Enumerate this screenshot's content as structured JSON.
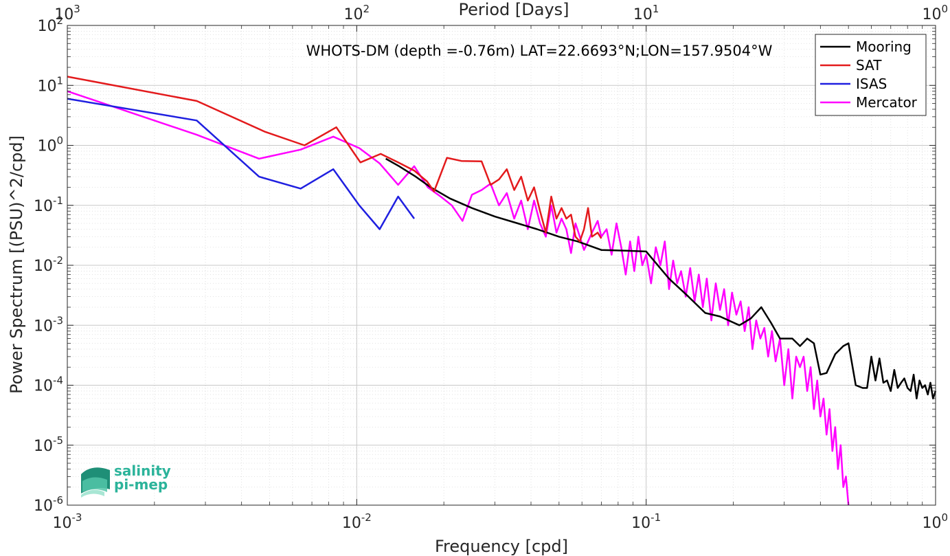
{
  "chart_data": {
    "type": "line",
    "title": "WHOTS-DM (depth =-0.76m) LAT=22.6693°N;LON=157.9504°W",
    "xlabel": "Frequency [cpd]",
    "xlabel_top": "Period [Days]",
    "ylabel": "Power Spectrum [(PSU)^2/cpd]",
    "xscale": "log",
    "yscale": "log",
    "xlim": [
      0.001,
      1
    ],
    "ylim": [
      1e-06,
      100
    ],
    "grid": true,
    "legend_position": "top-right",
    "x_ticks": [
      {
        "value": 0.001,
        "base": "10",
        "exp": "-3"
      },
      {
        "value": 0.01,
        "base": "10",
        "exp": "-2"
      },
      {
        "value": 0.1,
        "base": "10",
        "exp": "-1"
      },
      {
        "value": 1,
        "base": "10",
        "exp": "0"
      }
    ],
    "x_top_ticks": [
      {
        "value": 0.001,
        "base": "10",
        "exp": "3"
      },
      {
        "value": 0.01,
        "base": "10",
        "exp": "2"
      },
      {
        "value": 0.1,
        "base": "10",
        "exp": "1"
      },
      {
        "value": 1,
        "base": "10",
        "exp": "0"
      }
    ],
    "y_ticks": [
      {
        "value": 100,
        "base": "10",
        "exp": "2"
      },
      {
        "value": 10,
        "base": "10",
        "exp": "1"
      },
      {
        "value": 1,
        "base": "10",
        "exp": "0"
      },
      {
        "value": 0.1,
        "base": "10",
        "exp": "-1"
      },
      {
        "value": 0.01,
        "base": "10",
        "exp": "-2"
      },
      {
        "value": 0.001,
        "base": "10",
        "exp": "-3"
      },
      {
        "value": 0.0001,
        "base": "10",
        "exp": "-4"
      },
      {
        "value": 1e-05,
        "base": "10",
        "exp": "-5"
      },
      {
        "value": 1e-06,
        "base": "10",
        "exp": "-6"
      }
    ],
    "series": [
      {
        "name": "Mooring",
        "color": "#000000",
        "x": [
          0.0126,
          0.014,
          0.016,
          0.018,
          0.021,
          0.025,
          0.03,
          0.036,
          0.042,
          0.05,
          0.058,
          0.07,
          0.085,
          0.1,
          0.12,
          0.14,
          0.16,
          0.18,
          0.21,
          0.23,
          0.25,
          0.27,
          0.29,
          0.32,
          0.34,
          0.36,
          0.38,
          0.4,
          0.42,
          0.45,
          0.48,
          0.5,
          0.53,
          0.56,
          0.58,
          0.6,
          0.62,
          0.64,
          0.66,
          0.68,
          0.7,
          0.72,
          0.74,
          0.76,
          0.78,
          0.8,
          0.82,
          0.84,
          0.86,
          0.88,
          0.9,
          0.92,
          0.94,
          0.96,
          0.98,
          1.0
        ],
        "y": [
          0.6,
          0.45,
          0.3,
          0.2,
          0.13,
          0.09,
          0.065,
          0.05,
          0.04,
          0.03,
          0.025,
          0.018,
          0.0175,
          0.017,
          0.006,
          0.003,
          0.0016,
          0.0014,
          0.001,
          0.0013,
          0.002,
          0.0011,
          0.0006,
          0.0006,
          0.00045,
          0.0006,
          0.0005,
          0.00015,
          0.00016,
          0.00033,
          0.00045,
          0.0005,
          0.0001,
          9e-05,
          9e-05,
          0.0003,
          0.00012,
          0.00028,
          0.00011,
          0.00012,
          8e-05,
          0.00018,
          9e-05,
          0.00011,
          0.00013,
          9e-05,
          8e-05,
          0.00015,
          6e-05,
          0.00012,
          9e-05,
          0.0001,
          7e-05,
          0.00011,
          6e-05,
          8e-05
        ]
      },
      {
        "name": "SAT",
        "color": "#e31a1c",
        "x": [
          0.001,
          0.0028,
          0.0048,
          0.0066,
          0.0085,
          0.0103,
          0.0121,
          0.0139,
          0.0158,
          0.0175,
          0.0185,
          0.0205,
          0.023,
          0.027,
          0.029,
          0.031,
          0.033,
          0.035,
          0.037,
          0.039,
          0.041,
          0.043,
          0.045,
          0.047,
          0.049,
          0.051,
          0.053,
          0.055,
          0.057,
          0.059,
          0.061,
          0.063,
          0.065,
          0.068,
          0.07
        ],
        "y": [
          14,
          5.5,
          1.7,
          1.0,
          2.0,
          0.52,
          0.72,
          0.52,
          0.38,
          0.25,
          0.17,
          0.62,
          0.55,
          0.54,
          0.22,
          0.27,
          0.4,
          0.18,
          0.3,
          0.12,
          0.2,
          0.08,
          0.035,
          0.14,
          0.06,
          0.09,
          0.06,
          0.07,
          0.03,
          0.025,
          0.04,
          0.09,
          0.03,
          0.035,
          0.028
        ]
      },
      {
        "name": "ISAS",
        "color": "#1f1fe0",
        "x": [
          0.001,
          0.0028,
          0.0046,
          0.0064,
          0.0083,
          0.0102,
          0.012,
          0.0139,
          0.0158
        ],
        "y": [
          6.0,
          2.6,
          0.3,
          0.19,
          0.4,
          0.1,
          0.04,
          0.14,
          0.06
        ]
      },
      {
        "name": "Mercator",
        "color": "#ff00ff",
        "x": [
          0.001,
          0.0028,
          0.0046,
          0.0064,
          0.0083,
          0.0102,
          0.012,
          0.0139,
          0.0158,
          0.0176,
          0.0195,
          0.0213,
          0.0232,
          0.025,
          0.027,
          0.029,
          0.031,
          0.033,
          0.035,
          0.037,
          0.039,
          0.041,
          0.043,
          0.045,
          0.047,
          0.049,
          0.051,
          0.053,
          0.055,
          0.057,
          0.059,
          0.061,
          0.063,
          0.065,
          0.068,
          0.07,
          0.073,
          0.076,
          0.079,
          0.082,
          0.085,
          0.088,
          0.091,
          0.094,
          0.097,
          0.1,
          0.104,
          0.108,
          0.112,
          0.116,
          0.12,
          0.124,
          0.128,
          0.132,
          0.137,
          0.142,
          0.147,
          0.152,
          0.157,
          0.162,
          0.168,
          0.174,
          0.18,
          0.186,
          0.192,
          0.198,
          0.205,
          0.212,
          0.219,
          0.226,
          0.233,
          0.24,
          0.248,
          0.256,
          0.264,
          0.272,
          0.28,
          0.29,
          0.3,
          0.31,
          0.32,
          0.33,
          0.34,
          0.35,
          0.36,
          0.37,
          0.38,
          0.39,
          0.4,
          0.41,
          0.42,
          0.43,
          0.44,
          0.45,
          0.46,
          0.47,
          0.48,
          0.49,
          0.5
        ],
        "y": [
          8.0,
          1.5,
          0.6,
          0.85,
          1.4,
          0.9,
          0.5,
          0.22,
          0.45,
          0.2,
          0.14,
          0.1,
          0.055,
          0.15,
          0.18,
          0.23,
          0.1,
          0.16,
          0.06,
          0.12,
          0.04,
          0.12,
          0.05,
          0.03,
          0.1,
          0.035,
          0.06,
          0.04,
          0.016,
          0.05,
          0.03,
          0.018,
          0.025,
          0.035,
          0.055,
          0.03,
          0.04,
          0.015,
          0.05,
          0.02,
          0.007,
          0.025,
          0.008,
          0.03,
          0.01,
          0.015,
          0.005,
          0.02,
          0.01,
          0.025,
          0.004,
          0.012,
          0.005,
          0.008,
          0.003,
          0.009,
          0.0025,
          0.007,
          0.002,
          0.006,
          0.0012,
          0.005,
          0.0018,
          0.004,
          0.001,
          0.0035,
          0.0015,
          0.0025,
          0.0008,
          0.002,
          0.0004,
          0.0012,
          0.0006,
          0.0009,
          0.0003,
          0.0008,
          0.00025,
          0.0006,
          0.0001,
          0.0004,
          6e-05,
          0.0003,
          0.0002,
          0.0003,
          8e-05,
          0.0002,
          4e-05,
          0.00012,
          3e-05,
          6e-05,
          1.5e-05,
          4e-05,
          8e-06,
          2e-05,
          4e-06,
          1e-05,
          2e-06,
          3e-06,
          1e-06
        ]
      }
    ]
  },
  "logo": {
    "line1": "salinity",
    "line2": "pi-mep"
  }
}
